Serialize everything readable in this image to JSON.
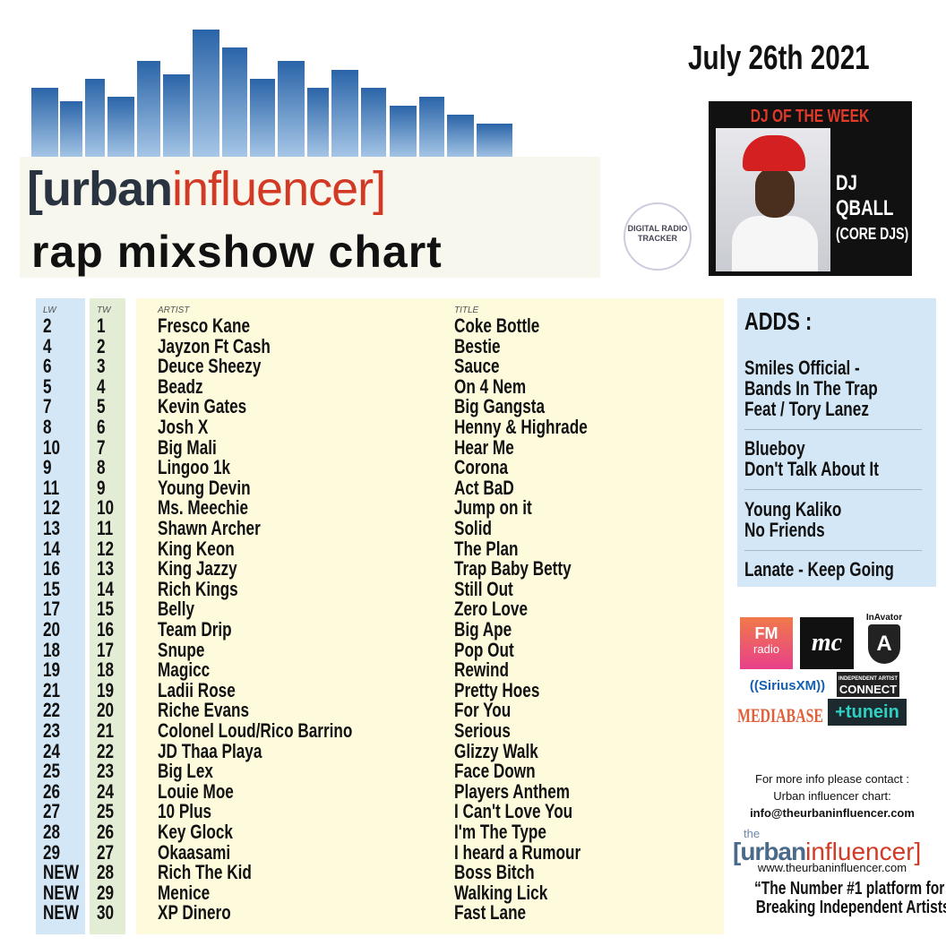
{
  "header": {
    "brand_urban": "[urban",
    "brand_influencer": "influencer]",
    "chart_name": "rap mixshow chart",
    "date": "July 26th 2021",
    "tracker_logo": "DIGITAL RADIO TRACKER"
  },
  "dj_of_week": {
    "label": "DJ OF THE WEEK",
    "name_line1": "DJ",
    "name_line2": "QBALL",
    "group": "(CORE DJS)"
  },
  "columns": {
    "lw": "LW",
    "tw": "TW",
    "artist": "ARTIST",
    "title": "TITLE"
  },
  "rows": [
    {
      "lw": "2",
      "tw": "1",
      "artist": "Fresco Kane",
      "title": "Coke Bottle"
    },
    {
      "lw": "4",
      "tw": "2",
      "artist": "Jayzon Ft Cash",
      "title": "Bestie"
    },
    {
      "lw": "6",
      "tw": "3",
      "artist": "Deuce Sheezy",
      "title": "Sauce"
    },
    {
      "lw": "5",
      "tw": "4",
      "artist": "Beadz",
      "title": "On 4 Nem"
    },
    {
      "lw": "7",
      "tw": "5",
      "artist": "Kevin Gates",
      "title": "Big Gangsta"
    },
    {
      "lw": "8",
      "tw": "6",
      "artist": "Josh X",
      "title": "Henny & Highrade"
    },
    {
      "lw": "10",
      "tw": "7",
      "artist": "Big Mali",
      "title": "Hear Me"
    },
    {
      "lw": "9",
      "tw": "8",
      "artist": "Lingoo 1k",
      "title": "Corona"
    },
    {
      "lw": "11",
      "tw": "9",
      "artist": "Young Devin",
      "title": "Act BaD"
    },
    {
      "lw": "12",
      "tw": "10",
      "artist": "Ms. Meechie",
      "title": "Jump on it"
    },
    {
      "lw": "13",
      "tw": "11",
      "artist": "Shawn Archer",
      "title": "Solid"
    },
    {
      "lw": "14",
      "tw": "12",
      "artist": "King Keon",
      "title": "The Plan"
    },
    {
      "lw": "16",
      "tw": "13",
      "artist": "King Jazzy",
      "title": "Trap Baby Betty"
    },
    {
      "lw": "15",
      "tw": "14",
      "artist": "Rich Kings",
      "title": "Still Out"
    },
    {
      "lw": "17",
      "tw": "15",
      "artist": "Belly",
      "title": "Zero Love"
    },
    {
      "lw": "20",
      "tw": "16",
      "artist": "Team Drip",
      "title": "Big Ape"
    },
    {
      "lw": "18",
      "tw": "17",
      "artist": "Snupe",
      "title": "Pop Out"
    },
    {
      "lw": "19",
      "tw": "18",
      "artist": "Magicc",
      "title": "Rewind"
    },
    {
      "lw": "21",
      "tw": "19",
      "artist": "Ladii Rose",
      "title": "Pretty Hoes"
    },
    {
      "lw": "22",
      "tw": "20",
      "artist": "Riche Evans",
      "title": "For You"
    },
    {
      "lw": "23",
      "tw": "21",
      "artist": "Colonel Loud/Rico Barrino",
      "title": "Serious"
    },
    {
      "lw": "24",
      "tw": "22",
      "artist": "JD Thaa Playa",
      "title": "Glizzy Walk"
    },
    {
      "lw": "25",
      "tw": "23",
      "artist": "Big Lex",
      "title": "Face Down"
    },
    {
      "lw": "26",
      "tw": "24",
      "artist": "Louie Moe",
      "title": "Players Anthem"
    },
    {
      "lw": "27",
      "tw": "25",
      "artist": "10 Plus",
      "title": "I Can't Love You"
    },
    {
      "lw": "28",
      "tw": "26",
      "artist": "Key Glock",
      "title": "I'm The Type"
    },
    {
      "lw": "29",
      "tw": "27",
      "artist": "Okaasami",
      "title": "I heard a Rumour"
    },
    {
      "lw": "NEW",
      "tw": "28",
      "artist": "Rich The Kid",
      "title": "Boss Bitch"
    },
    {
      "lw": "NEW",
      "tw": "29",
      "artist": "Menice",
      "title": "Walking Lick"
    },
    {
      "lw": "NEW",
      "tw": "30",
      "artist": "XP Dinero",
      "title": "Fast Lane"
    }
  ],
  "adds": {
    "title": "ADDS :",
    "items": [
      {
        "lines": [
          "Smiles Official  -",
          "Bands  In The Trap",
          "Feat / Tory Lanez"
        ]
      },
      {
        "lines": [
          "Blueboy",
          "Don't Talk About It"
        ]
      },
      {
        "lines": [
          "Young Kaliko",
          "No Friends"
        ]
      },
      {
        "lines": [
          "Lanate - Keep Going"
        ]
      }
    ]
  },
  "partners": {
    "fm_top": "FM",
    "fm_bottom": "radio",
    "mc": "mc",
    "inavator": "InAvator",
    "sirius": "((SiriusXM))",
    "iac_top": "INDEPENDENT ARTIST",
    "iac_bottom": "CONNECT",
    "mediabase": "MEDIABASE",
    "tunein": "+tunein"
  },
  "footer": {
    "info1": "For more info please contact :",
    "info2": "Urban influencer chart:",
    "email": "info@theurbaninfluencer.com",
    "logo_the": "the",
    "logo_urban": "[urban",
    "logo_influencer": "influencer]",
    "website": "www.theurbaninfluencer.com",
    "tagline1": "“The Number #1 platform for",
    "tagline2": "Breaking Independent Artists“"
  },
  "colors": {
    "lw_bg": "#d3e7f7",
    "tw_bg": "#e3edd6",
    "main_bg": "#fdfbdc",
    "accent_red": "#d23a26",
    "skyline_blue": "#3a78b8"
  }
}
